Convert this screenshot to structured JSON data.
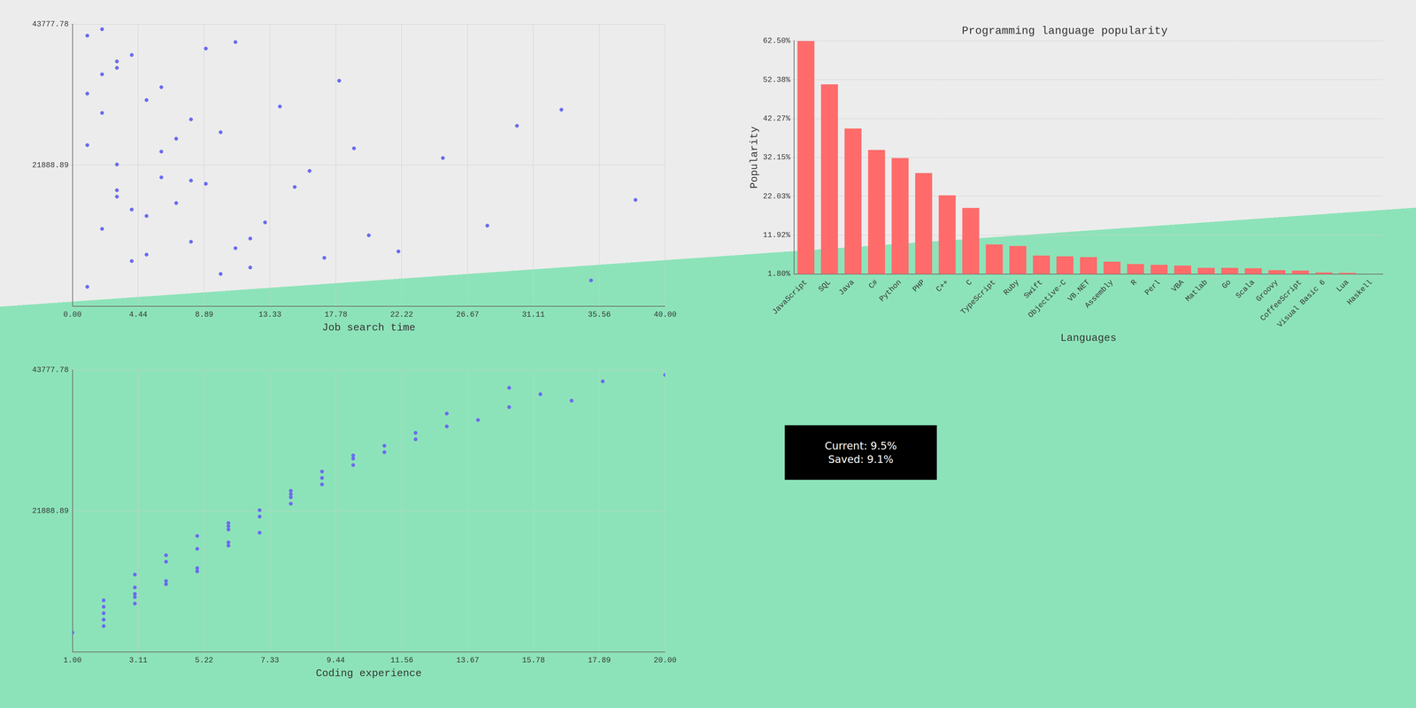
{
  "chart_data": [
    {
      "type": "scatter",
      "xlabel": "Job search time",
      "ylabel": "Coding experience",
      "color": "#6b6bef",
      "grid": true,
      "x": [
        2,
        3,
        5,
        1,
        4,
        6,
        8,
        2,
        3,
        7,
        10,
        12,
        1,
        5,
        9,
        14,
        3,
        6,
        11,
        16,
        2,
        4,
        8,
        13,
        18,
        20,
        1,
        3,
        7,
        9,
        22,
        25,
        5,
        10,
        15,
        28,
        2,
        6,
        12,
        30,
        4,
        8,
        17,
        33,
        1,
        3,
        19,
        35,
        11,
        38
      ],
      "y": [
        3,
        5,
        2,
        8,
        4,
        6,
        3,
        10,
        7,
        5,
        9,
        2,
        12,
        4,
        6,
        11,
        15,
        8,
        3,
        7,
        14,
        2,
        10,
        5,
        13,
        4,
        18,
        6,
        9,
        16,
        3,
        8,
        11,
        2,
        7,
        5,
        20,
        12,
        4,
        9,
        17,
        6,
        3,
        10,
        1,
        13,
        8,
        2,
        15,
        6
      ],
      "z": [
        12000,
        18000,
        8000,
        25000,
        15000,
        20000,
        10000,
        30000,
        22000,
        16000,
        27000,
        6000,
        33000,
        14000,
        19000,
        31000,
        38000,
        24000,
        9000,
        21000,
        36000,
        7000,
        29000,
        13000,
        35000,
        11000,
        42000,
        17000,
        26000,
        40000,
        8500,
        23000,
        32000,
        5000,
        18500,
        12500,
        43000,
        34000,
        10500,
        28000,
        39000,
        19500,
        7500,
        30500,
        3000,
        37000,
        24500,
        4000,
        41000,
        16500
      ],
      "xlim": [
        0,
        40
      ],
      "xticks": [
        {
          "value": 0,
          "label": "0.00"
        },
        4.44,
        8.89,
        13.33,
        17.78,
        22.22,
        26.67,
        31.11,
        35.56,
        {
          "value": 40,
          "label": "40.00"
        }
      ],
      "ylim": [
        1,
        20
      ],
      "yticks": [
        {
          "value": 1,
          "label": "1.00"
        },
        3.11,
        5.22,
        7.33,
        9.44,
        11.56,
        13.67,
        15.78,
        17.89,
        {
          "value": 20,
          "label": "20.00"
        }
      ],
      "zlim": [
        0,
        43777.78
      ],
      "zticks": [
        21888.89,
        43777.78
      ]
    },
    {
      "type": "bar",
      "title": "Programming language popularity",
      "xlabel": "Languages",
      "ylabel": "Popularity",
      "color": "#ff6b6b",
      "grid": true,
      "categories": [
        "JavaScript",
        "SQL",
        "Java",
        "C#",
        "Python",
        "PHP",
        "C++",
        "C",
        "TypeScript",
        "Ruby",
        "Swift",
        "Objective-C",
        "VB.NET",
        "Assembly",
        "R",
        "Perl",
        "VBA",
        "Matlab",
        "Go",
        "Scala",
        "Groovy",
        "CoffeeScript",
        "Visual Basic 6",
        "Lua",
        "Haskell"
      ],
      "values": [
        62.5,
        51.2,
        39.7,
        34.1,
        32.0,
        28.1,
        22.3,
        19.0,
        9.5,
        9.1,
        6.6,
        6.4,
        6.2,
        5.0,
        4.4,
        4.2,
        4.0,
        3.4,
        3.4,
        3.3,
        2.8,
        2.7,
        2.2,
        2.1,
        1.8
      ],
      "ylim": [
        1.8,
        62.5
      ],
      "yticks": [
        {
          "value": 1.8,
          "label": "1.80%"
        },
        {
          "value": 11.92,
          "label": "11.92%"
        },
        {
          "value": 22.03,
          "label": "22.03%"
        },
        {
          "value": 32.15,
          "label": "32.15%"
        },
        {
          "value": 42.27,
          "label": "42.27%"
        },
        {
          "value": 52.38,
          "label": "52.38%"
        },
        {
          "value": 62.5,
          "label": "62.50%"
        }
      ],
      "annotations": [
        "Current: 9.5%",
        "Saved: 9.1%"
      ]
    }
  ]
}
